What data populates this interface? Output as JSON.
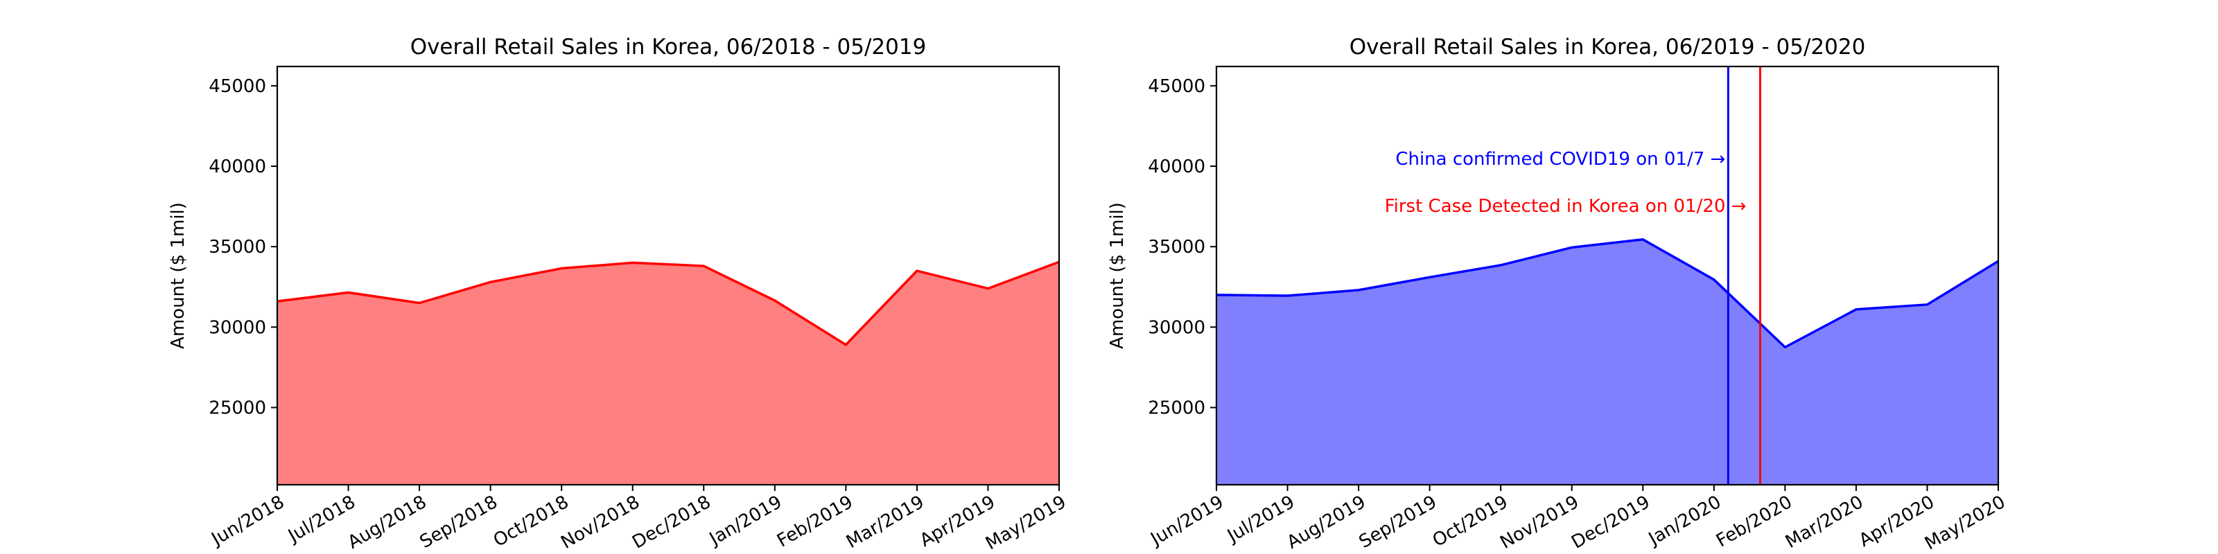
{
  "chart_data": [
    {
      "type": "area",
      "title": "Overall Retail Sales in Korea, 06/2018 - 05/2019",
      "xlabel": "",
      "ylabel": "Amount ($ 1mil)",
      "categories": [
        "Jun/2018",
        "Jul/2018",
        "Aug/2018",
        "Sep/2018",
        "Oct/2018",
        "Nov/2018",
        "Dec/2018",
        "Jan/2019",
        "Feb/2019",
        "Mar/2019",
        "Apr/2019",
        "May/2019"
      ],
      "values": [
        31600,
        32150,
        31500,
        32800,
        33650,
        34000,
        33800,
        31650,
        28900,
        33500,
        32400,
        34050
      ],
      "ylim": [
        20200,
        46200
      ],
      "yticks": [
        "25000",
        "30000",
        "35000",
        "40000",
        "45000"
      ],
      "color": "#ff0000",
      "fill": "#ff8080",
      "grid": false,
      "annotations": []
    },
    {
      "type": "area",
      "title": "Overall Retail Sales in Korea, 06/2019 - 05/2020",
      "xlabel": "",
      "ylabel": "Amount ($ 1mil)",
      "categories": [
        "Jun/2019",
        "Jul/2019",
        "Aug/2019",
        "Sep/2019",
        "Oct/2019",
        "Nov/2019",
        "Dec/2019",
        "Jan/2020",
        "Feb/2020",
        "Mar/2020",
        "Apr/2020",
        "May/2020"
      ],
      "values": [
        32000,
        31950,
        32300,
        33100,
        33850,
        34950,
        35450,
        32950,
        28750,
        31100,
        31400,
        34100
      ],
      "ylim": [
        20200,
        46200
      ],
      "yticks": [
        "25000",
        "30000",
        "35000",
        "40000",
        "45000"
      ],
      "color": "#0000ff",
      "fill": "#8080ff",
      "grid": false,
      "annotations": [
        {
          "text": "China confirmed COVID19 on 01/7 →",
          "color": "#0000ff",
          "x": 7.2
        },
        {
          "text": "First Case Detected in Korea on 01/20 →",
          "color": "#ff0000",
          "x": 7.65
        }
      ]
    }
  ]
}
